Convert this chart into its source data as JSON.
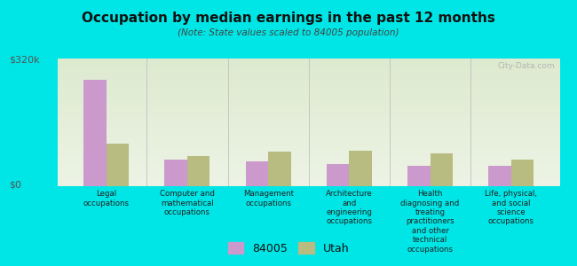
{
  "title": "Occupation by median earnings in the past 12 months",
  "subtitle": "(Note: State values scaled to 84005 population)",
  "categories": [
    "Legal\noccupations",
    "Computer and\nmathematical\noccupations",
    "Management\noccupations",
    "Architecture\nand\nengineering\noccupations",
    "Health\ndiagnosing and\ntreating\npractitioners\nand other\ntechnical\noccupations",
    "Life, physical,\nand social\nscience\noccupations"
  ],
  "values_84005": [
    295000,
    75000,
    68000,
    62000,
    57000,
    57000
  ],
  "values_utah": [
    118000,
    83000,
    97000,
    98000,
    90000,
    75000
  ],
  "color_84005": "#cc99cc",
  "color_utah": "#b8bc80",
  "ytick_labels": [
    "$320k",
    "$0"
  ],
  "ytick_values": [
    320000,
    0
  ],
  "ylim": [
    0,
    355000
  ],
  "background_color": "#00e5e5",
  "plot_bg_color": "#e8f0e0",
  "watermark": "City-Data.com",
  "legend_84005": "84005",
  "legend_utah": "Utah",
  "bar_width": 0.28
}
